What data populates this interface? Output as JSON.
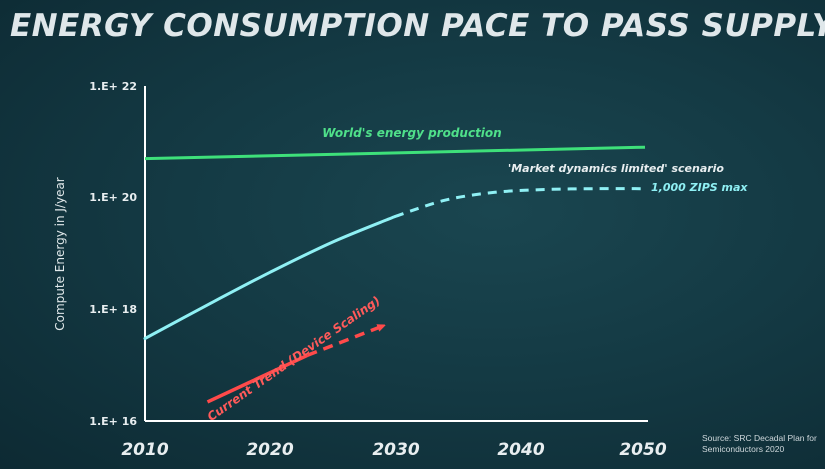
{
  "slide": {
    "title": "ENERGY CONSUMPTION PACE TO PASS SUPPLY",
    "source_line1": "Source: SRC Decadal Plan for",
    "source_line2": "Semiconductors 2020"
  },
  "colors": {
    "background": "#143a44",
    "axis": "#ffffff",
    "production": "#3ee07a",
    "scenario": "#8ff0f4",
    "trend": "#ff4a4a"
  },
  "chart_data": {
    "type": "line",
    "title": "ENERGY CONSUMPTION PACE TO PASS SUPPLY",
    "ylabel": "Compute Energy in J/year",
    "xlabel": "",
    "x_range": [
      2010,
      2050
    ],
    "y_scale": "log",
    "y_range": [
      1e+16,
      1e+22
    ],
    "x_ticks": [
      "2010",
      "2020",
      "2030",
      "2040",
      "2050"
    ],
    "y_ticks": [
      "1.E+ 16",
      "1.E+ 18",
      "1.E+ 20",
      "1.E+ 22"
    ],
    "grid": false,
    "series": [
      {
        "key": "production",
        "name": "World's energy production",
        "style": "solid",
        "points": [
          [
            2010,
            5e+20
          ],
          [
            2050,
            8e+20
          ]
        ]
      },
      {
        "key": "scenario",
        "name": "'Market dynamics limited' scenario",
        "style": "solid-then-dashed",
        "solid_points": [
          [
            2010,
            3e+17
          ],
          [
            2015,
            1.2e+18
          ],
          [
            2020,
            4.6e+18
          ],
          [
            2025,
            1.6e+19
          ],
          [
            2030,
            4.6e+19
          ]
        ],
        "dashed_points": [
          [
            2030,
            4.6e+19
          ],
          [
            2034,
            9e+19
          ],
          [
            2038,
            1.25e+20
          ],
          [
            2042,
            1.4e+20
          ],
          [
            2046,
            1.45e+20
          ],
          [
            2050,
            1.45e+20
          ]
        ],
        "end_label": "1,000 ZIPS max"
      },
      {
        "key": "trend",
        "name": "Current Trend (Device Scaling)",
        "style": "solid-then-dashed-arrow",
        "solid_points": [
          [
            2015,
            2.2e+16
          ],
          [
            2023,
            1.5e+17
          ]
        ],
        "dashed_points": [
          [
            2023,
            1.5e+17
          ],
          [
            2029,
            5e+17
          ]
        ]
      }
    ]
  }
}
